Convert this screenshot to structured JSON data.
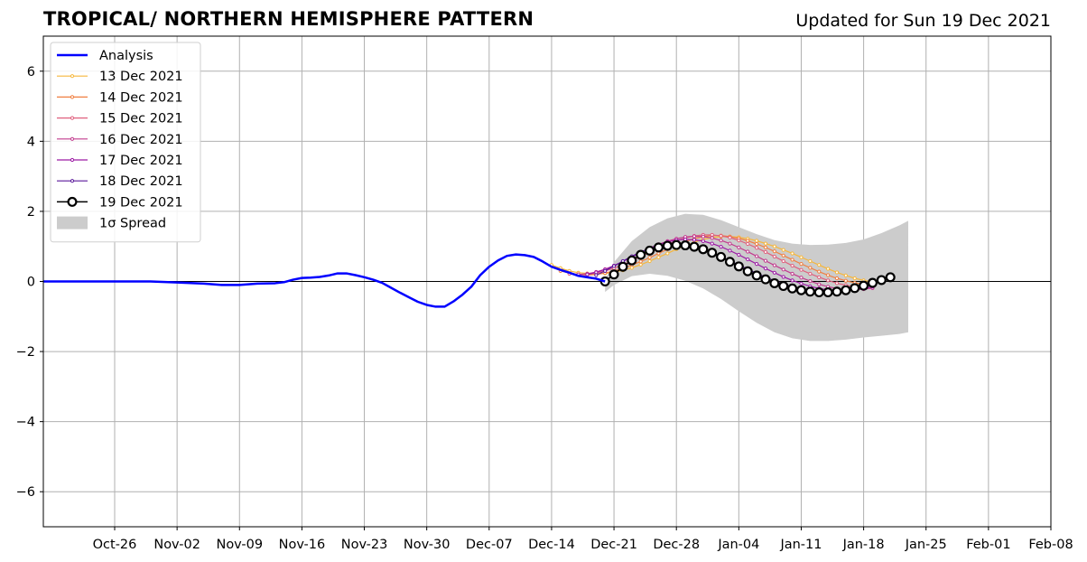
{
  "header": {
    "title": "TROPICAL/ NORTHERN HEMISPHERE PATTERN",
    "updated": "Updated for Sun 19 Dec 2021"
  },
  "chart_data": {
    "type": "line",
    "title": "TROPICAL/ NORTHERN HEMISPHERE PATTERN",
    "subtitle": "Updated for Sun 19 Dec 2021",
    "x_range": [
      "2021-10-18",
      "2022-02-08"
    ],
    "ylim": [
      -7,
      7
    ],
    "yticks": [
      -6,
      -4,
      -2,
      0,
      2,
      4,
      6
    ],
    "xticks": [
      {
        "date": "2021-10-26",
        "label": "Oct-26"
      },
      {
        "date": "2021-11-02",
        "label": "Nov-02"
      },
      {
        "date": "2021-11-09",
        "label": "Nov-09"
      },
      {
        "date": "2021-11-16",
        "label": "Nov-16"
      },
      {
        "date": "2021-11-23",
        "label": "Nov-23"
      },
      {
        "date": "2021-11-30",
        "label": "Nov-30"
      },
      {
        "date": "2021-12-07",
        "label": "Dec-07"
      },
      {
        "date": "2021-12-14",
        "label": "Dec-14"
      },
      {
        "date": "2021-12-21",
        "label": "Dec-21"
      },
      {
        "date": "2021-12-28",
        "label": "Dec-28"
      },
      {
        "date": "2022-01-04",
        "label": "Jan-04"
      },
      {
        "date": "2022-01-11",
        "label": "Jan-11"
      },
      {
        "date": "2022-01-18",
        "label": "Jan-18"
      },
      {
        "date": "2022-01-25",
        "label": "Jan-25"
      },
      {
        "date": "2022-02-01",
        "label": "Feb-01"
      },
      {
        "date": "2022-02-08",
        "label": "Feb-08"
      }
    ],
    "grid": true,
    "legend_position": "top-left",
    "analysis": {
      "name": "Analysis",
      "color": "#0000ff",
      "points": [
        [
          "2021-10-18",
          0.0
        ],
        [
          "2021-10-22",
          0.0
        ],
        [
          "2021-10-26",
          0.0
        ],
        [
          "2021-10-30",
          0.0
        ],
        [
          "2021-11-02",
          -0.03
        ],
        [
          "2021-11-05",
          -0.06
        ],
        [
          "2021-11-07",
          -0.1
        ],
        [
          "2021-11-09",
          -0.1
        ],
        [
          "2021-11-11",
          -0.06
        ],
        [
          "2021-11-13",
          -0.05
        ],
        [
          "2021-11-14",
          -0.02
        ],
        [
          "2021-11-15",
          0.05
        ],
        [
          "2021-11-16",
          0.1
        ],
        [
          "2021-11-17",
          0.11
        ],
        [
          "2021-11-18",
          0.13
        ],
        [
          "2021-11-19",
          0.17
        ],
        [
          "2021-11-20",
          0.23
        ],
        [
          "2021-11-21",
          0.23
        ],
        [
          "2021-11-22",
          0.18
        ],
        [
          "2021-11-23",
          0.12
        ],
        [
          "2021-11-24",
          0.05
        ],
        [
          "2021-11-25",
          -0.04
        ],
        [
          "2021-11-26",
          -0.18
        ],
        [
          "2021-11-27",
          -0.32
        ],
        [
          "2021-11-28",
          -0.45
        ],
        [
          "2021-11-29",
          -0.58
        ],
        [
          "2021-11-30",
          -0.67
        ],
        [
          "2021-12-01",
          -0.72
        ],
        [
          "2021-12-02",
          -0.72
        ],
        [
          "2021-12-03",
          -0.57
        ],
        [
          "2021-12-04",
          -0.38
        ],
        [
          "2021-12-05",
          -0.15
        ],
        [
          "2021-12-06",
          0.18
        ],
        [
          "2021-12-07",
          0.42
        ],
        [
          "2021-12-08",
          0.6
        ],
        [
          "2021-12-09",
          0.73
        ],
        [
          "2021-12-10",
          0.77
        ],
        [
          "2021-12-11",
          0.75
        ],
        [
          "2021-12-12",
          0.7
        ],
        [
          "2021-12-13",
          0.57
        ],
        [
          "2021-12-14",
          0.42
        ],
        [
          "2021-12-15",
          0.33
        ],
        [
          "2021-12-16",
          0.25
        ],
        [
          "2021-12-17",
          0.16
        ],
        [
          "2021-12-18",
          0.12
        ],
        [
          "2021-12-19",
          0.08
        ],
        [
          "2021-12-20",
          0.0
        ]
      ]
    },
    "spread": {
      "name": "1σ Spread",
      "color": "#cccccc",
      "upper": [
        [
          "2021-12-20",
          0.05
        ],
        [
          "2021-12-21",
          0.55
        ],
        [
          "2021-12-23",
          1.15
        ],
        [
          "2021-12-25",
          1.55
        ],
        [
          "2021-12-27",
          1.8
        ],
        [
          "2021-12-29",
          1.93
        ],
        [
          "2021-12-31",
          1.9
        ],
        [
          "2022-01-02",
          1.75
        ],
        [
          "2022-01-04",
          1.55
        ],
        [
          "2022-01-06",
          1.35
        ],
        [
          "2022-01-08",
          1.18
        ],
        [
          "2022-01-10",
          1.08
        ],
        [
          "2022-01-12",
          1.04
        ],
        [
          "2022-01-14",
          1.05
        ],
        [
          "2022-01-16",
          1.1
        ],
        [
          "2022-01-18",
          1.2
        ],
        [
          "2022-01-20",
          1.38
        ],
        [
          "2022-01-22",
          1.6
        ],
        [
          "2022-01-23",
          1.73
        ]
      ],
      "lower": [
        [
          "2021-12-20",
          -0.3
        ],
        [
          "2021-12-21",
          -0.1
        ],
        [
          "2021-12-23",
          0.15
        ],
        [
          "2021-12-25",
          0.22
        ],
        [
          "2021-12-27",
          0.16
        ],
        [
          "2021-12-29",
          0.02
        ],
        [
          "2021-12-31",
          -0.2
        ],
        [
          "2022-01-02",
          -0.5
        ],
        [
          "2022-01-04",
          -0.85
        ],
        [
          "2022-01-06",
          -1.18
        ],
        [
          "2022-01-08",
          -1.45
        ],
        [
          "2022-01-10",
          -1.62
        ],
        [
          "2022-01-12",
          -1.7
        ],
        [
          "2022-01-14",
          -1.7
        ],
        [
          "2022-01-16",
          -1.66
        ],
        [
          "2022-01-18",
          -1.6
        ],
        [
          "2022-01-20",
          -1.55
        ],
        [
          "2022-01-22",
          -1.5
        ],
        [
          "2022-01-23",
          -1.45
        ]
      ]
    },
    "series": [
      {
        "name": "13 Dec 2021",
        "color": "#f6b73c",
        "start": "2021-12-14",
        "values": [
          0.47,
          0.38,
          0.3,
          0.25,
          0.23,
          0.22,
          0.23,
          0.26,
          0.32,
          0.39,
          0.48,
          0.58,
          0.69,
          0.8,
          0.92,
          1.02,
          1.12,
          1.2,
          1.25,
          1.28,
          1.28,
          1.26,
          1.22,
          1.16,
          1.08,
          1.0,
          0.9,
          0.8,
          0.69,
          0.58,
          0.47,
          0.36,
          0.26,
          0.17,
          0.09,
          0.03,
          -0.02
        ]
      },
      {
        "name": "14 Dec 2021",
        "color": "#f07f40",
        "start": "2021-12-15",
        "values": [
          0.3,
          0.24,
          0.2,
          0.18,
          0.2,
          0.24,
          0.3,
          0.38,
          0.47,
          0.57,
          0.68,
          0.8,
          0.92,
          1.04,
          1.14,
          1.22,
          1.28,
          1.31,
          1.31,
          1.28,
          1.23,
          1.16,
          1.07,
          0.97,
          0.86,
          0.74,
          0.62,
          0.5,
          0.39,
          0.28,
          0.18,
          0.09,
          0.02,
          -0.04,
          -0.08
        ]
      },
      {
        "name": "15 Dec 2021",
        "color": "#e0607e",
        "start": "2021-12-16",
        "values": [
          0.22,
          0.2,
          0.2,
          0.24,
          0.3,
          0.38,
          0.48,
          0.59,
          0.71,
          0.83,
          0.95,
          1.06,
          1.16,
          1.24,
          1.3,
          1.33,
          1.33,
          1.3,
          1.25,
          1.17,
          1.07,
          0.96,
          0.84,
          0.71,
          0.58,
          0.45,
          0.33,
          0.22,
          0.12,
          0.03,
          -0.05,
          -0.11,
          -0.15,
          -0.17
        ]
      },
      {
        "name": "16 Dec 2021",
        "color": "#c23b8e",
        "start": "2021-12-17",
        "values": [
          0.2,
          0.22,
          0.27,
          0.35,
          0.45,
          0.57,
          0.7,
          0.83,
          0.95,
          1.06,
          1.15,
          1.22,
          1.27,
          1.29,
          1.28,
          1.24,
          1.17,
          1.08,
          0.97,
          0.85,
          0.72,
          0.59,
          0.46,
          0.34,
          0.22,
          0.11,
          0.01,
          -0.08,
          -0.15,
          -0.2,
          -0.23,
          -0.24,
          -0.22,
          -0.19
        ]
      },
      {
        "name": "17 Dec 2021",
        "color": "#9c1aa5",
        "start": "2021-12-18",
        "values": [
          0.2,
          0.26,
          0.34,
          0.45,
          0.57,
          0.7,
          0.83,
          0.95,
          1.05,
          1.13,
          1.18,
          1.2,
          1.19,
          1.15,
          1.08,
          0.99,
          0.88,
          0.76,
          0.63,
          0.5,
          0.37,
          0.25,
          0.13,
          0.03,
          -0.06,
          -0.14,
          -0.2,
          -0.24,
          -0.26,
          -0.26,
          -0.24,
          -0.2,
          -0.15
        ]
      },
      {
        "name": "18 Dec 2021",
        "color": "#5a189a",
        "start": "2021-12-19",
        "values": [
          0.18,
          0.3,
          0.44,
          0.58,
          0.72,
          0.84,
          0.94,
          1.01,
          1.05,
          1.06,
          1.04,
          0.99,
          0.91,
          0.82,
          0.71,
          0.59,
          0.47,
          0.35,
          0.23,
          0.12,
          0.02,
          -0.07,
          -0.15,
          -0.21,
          -0.25,
          -0.28,
          -0.28,
          -0.27,
          -0.24,
          -0.2,
          -0.15,
          -0.1
        ]
      },
      {
        "name": "19 Dec 2021",
        "color": "#000000",
        "start": "2021-12-20",
        "values": [
          0.0,
          0.2,
          0.42,
          0.6,
          0.76,
          0.88,
          0.97,
          1.02,
          1.04,
          1.03,
          0.99,
          0.92,
          0.82,
          0.7,
          0.56,
          0.43,
          0.29,
          0.17,
          0.06,
          -0.05,
          -0.13,
          -0.2,
          -0.25,
          -0.29,
          -0.31,
          -0.31,
          -0.29,
          -0.25,
          -0.19,
          -0.12,
          -0.04,
          0.04,
          0.12
        ]
      }
    ]
  }
}
